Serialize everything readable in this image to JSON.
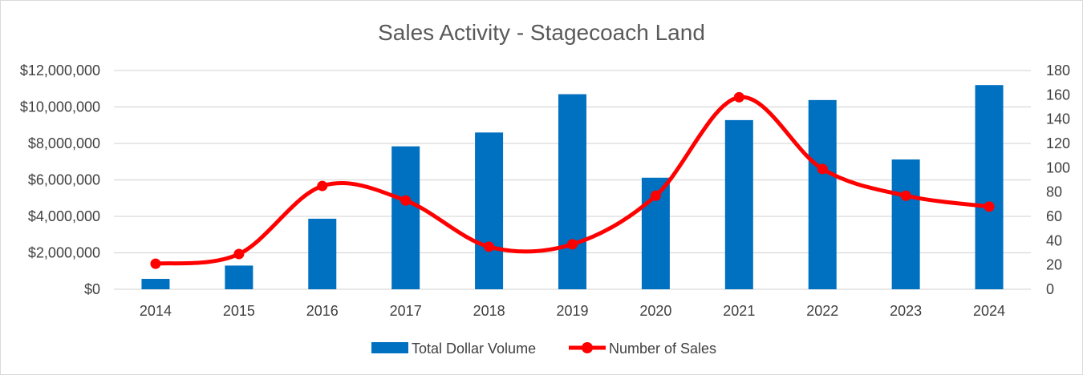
{
  "chart_data": {
    "type": "bar",
    "title": "Sales Activity - Stagecoach Land",
    "categories": [
      "2014",
      "2015",
      "2016",
      "2017",
      "2018",
      "2019",
      "2020",
      "2021",
      "2022",
      "2023",
      "2024"
    ],
    "series": [
      {
        "name": "Total Dollar Volume",
        "type": "bar",
        "axis": "left",
        "color": "#0070c0",
        "values": [
          570000,
          1300000,
          3870000,
          7840000,
          8600000,
          10700000,
          6120000,
          9280000,
          10380000,
          7120000,
          11200000
        ]
      },
      {
        "name": "Number of Sales",
        "type": "line",
        "smooth": true,
        "axis": "right",
        "color": "#ff0000",
        "values": [
          21,
          29,
          85,
          73,
          35,
          37,
          77,
          158,
          99,
          77,
          68
        ]
      }
    ],
    "y_left": {
      "min": 0,
      "max": 12000000,
      "ticks": [
        0,
        2000000,
        4000000,
        6000000,
        8000000,
        10000000,
        12000000
      ],
      "tick_labels": [
        "$0",
        "$2,000,000",
        "$4,000,000",
        "$6,000,000",
        "$8,000,000",
        "$10,000,000",
        "$12,000,000"
      ]
    },
    "y_right": {
      "min": 0,
      "max": 180,
      "ticks": [
        0,
        20,
        40,
        60,
        80,
        100,
        120,
        140,
        160,
        180
      ],
      "tick_labels": [
        "0",
        "20",
        "40",
        "60",
        "80",
        "100",
        "120",
        "140",
        "160",
        "180"
      ]
    },
    "grid": true,
    "gridline_color": "#d9d9d9",
    "legend_position": "bottom",
    "xlabel": "",
    "ylabel": ""
  }
}
